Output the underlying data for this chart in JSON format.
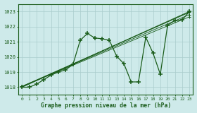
{
  "xlabel": "Graphe pression niveau de la mer (hPa)",
  "bg_color": "#ceeaea",
  "grid_color": "#aacccc",
  "line_color": "#1a5c1a",
  "xlim": [
    -0.5,
    23.5
  ],
  "ylim": [
    1017.5,
    1023.5
  ],
  "xticks": [
    0,
    1,
    2,
    3,
    4,
    5,
    6,
    7,
    8,
    9,
    10,
    11,
    12,
    13,
    14,
    15,
    16,
    17,
    18,
    19,
    20,
    21,
    22,
    23
  ],
  "yticks": [
    1018,
    1019,
    1020,
    1021,
    1022,
    1023
  ],
  "jagged": {
    "x": [
      0,
      1,
      2,
      3,
      4,
      5,
      6,
      7,
      8,
      9,
      10,
      11,
      12,
      13,
      14,
      15,
      16,
      17,
      18,
      19,
      20,
      21,
      22,
      23
    ],
    "y": [
      1018.0,
      1018.0,
      1018.2,
      1018.5,
      1018.8,
      1019.0,
      1019.15,
      1019.5,
      1021.1,
      1021.55,
      1021.25,
      1021.2,
      1021.1,
      1020.05,
      1019.55,
      1018.35,
      1018.35,
      1021.3,
      1020.25,
      1018.85,
      1022.1,
      1022.4,
      1022.45,
      1023.0
    ]
  },
  "linear1": {
    "x": [
      0,
      23
    ],
    "y": [
      1018.0,
      1023.0
    ]
  },
  "linear2": {
    "x": [
      0,
      23
    ],
    "y": [
      1018.05,
      1022.95
    ]
  },
  "linear3": {
    "x": [
      0,
      23
    ],
    "y": [
      1018.05,
      1022.8
    ]
  },
  "linear4": {
    "x": [
      0,
      23
    ],
    "y": [
      1018.05,
      1022.65
    ]
  }
}
